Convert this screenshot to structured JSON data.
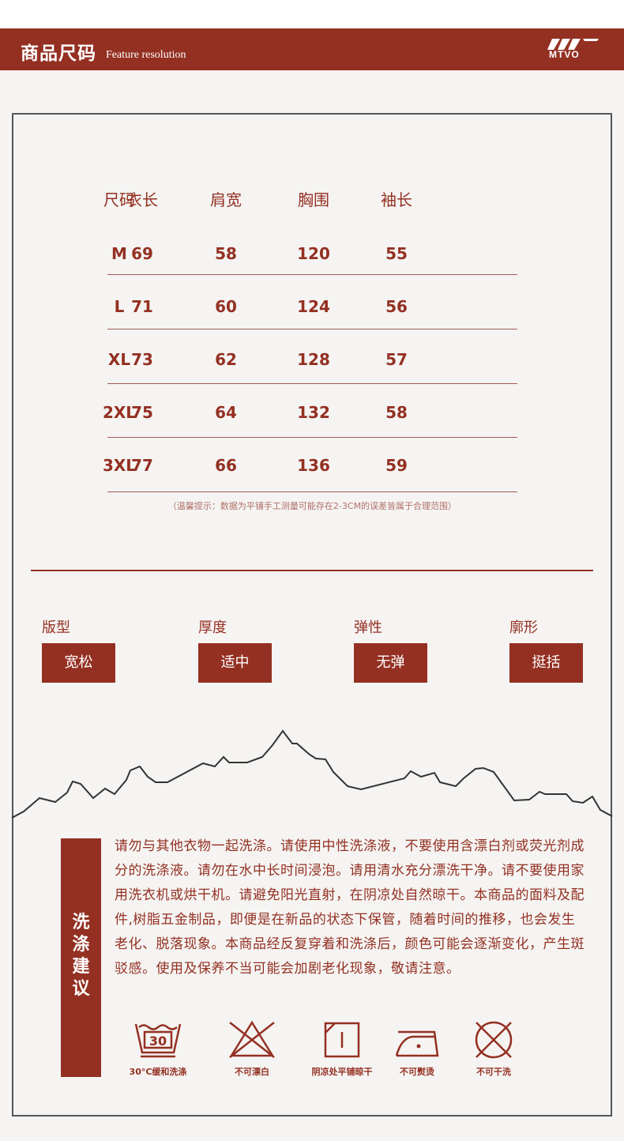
{
  "header": {
    "title": "商品尺码",
    "subtitle": "Feature resolution",
    "logo": "MTVO"
  },
  "size_table": {
    "headers": [
      "尺码",
      "衣长",
      "肩宽",
      "胸围",
      "袖长"
    ],
    "rows": [
      [
        "M",
        "69",
        "58",
        "120",
        "55"
      ],
      [
        "L",
        "71",
        "60",
        "124",
        "56"
      ],
      [
        "XL",
        "73",
        "62",
        "128",
        "57"
      ],
      [
        "2XL",
        "75",
        "64",
        "132",
        "58"
      ],
      [
        "3XL",
        "77",
        "66",
        "136",
        "59"
      ]
    ],
    "note": "（温馨提示：数据为平铺手工测量可能存在2-3CM的误差皆属于合理范围）"
  },
  "attributes": [
    {
      "label": "版型",
      "value": "宽松"
    },
    {
      "label": "厚度",
      "value": "适中"
    },
    {
      "label": "弹性",
      "value": "无弹"
    },
    {
      "label": "廓形",
      "value": "挺括"
    }
  ],
  "care": {
    "title": "洗涤建议",
    "text": "请勿与其他衣物一起洗涤。请使用中性洗涤液，不要使用含漂白剂或荧光剂成分的洗涤液。请勿在水中长时间浸泡。请用清水充分漂洗干净。请不要使用家用洗衣机或烘干机。请避免阳光直射，在阴凉处自然晾干。本商品的面料及配件,树脂五金制品，即便是在新品的状态下保管，随着时间的推移，也会发生老化、脱落现象。本商品经反复穿着和洗涤后，颜色可能会逐渐变化，产生斑驳感。使用及保养不当可能会加剧老化现象，敬请注意。",
    "icons": [
      {
        "name": "wash-30-icon",
        "label": "30°C缓和洗涤",
        "temp": "30"
      },
      {
        "name": "no-bleach-icon",
        "label": "不可漂白"
      },
      {
        "name": "dry-flat-shade-icon",
        "label": "阴凉处平铺晾干"
      },
      {
        "name": "no-iron-icon",
        "label": "不可熨烫"
      },
      {
        "name": "no-dryclean-icon",
        "label": "不可干洗"
      }
    ]
  },
  "colors": {
    "accent": "#943022",
    "background": "#f5f4f2"
  }
}
